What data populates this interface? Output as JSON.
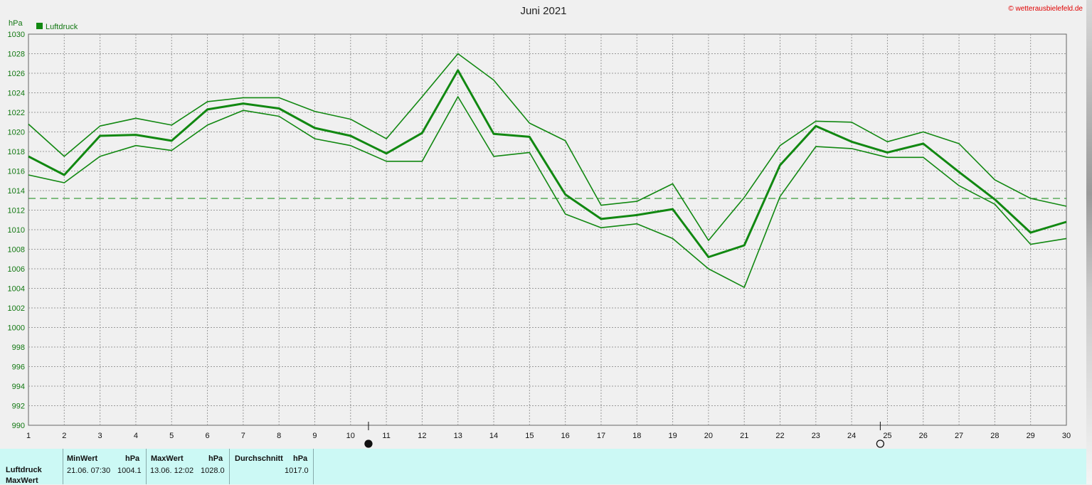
{
  "header": {
    "title": "Juni 2021",
    "copyright": "© wetterausbielefeld.de",
    "unit": "hPa",
    "legend_label": "Luftdruck"
  },
  "colors": {
    "line": "#118811",
    "grid": "#9a9a9a",
    "background": "#f0f0f0"
  },
  "chart_data": {
    "type": "line",
    "title": "Juni 2021",
    "ylabel": "hPa",
    "ylim": [
      990,
      1030
    ],
    "yticks": [
      "1030",
      "1028",
      "1026",
      "1024",
      "1022",
      "1020",
      "1018",
      "1016",
      "1014",
      "1012",
      "1010",
      "1008",
      "1006",
      "1004",
      "1002",
      "1000",
      "998",
      "996",
      "994",
      "992",
      "990"
    ],
    "x": [
      1,
      2,
      3,
      4,
      5,
      6,
      7,
      8,
      9,
      10,
      11,
      12,
      13,
      14,
      15,
      16,
      17,
      18,
      19,
      20,
      21,
      22,
      23,
      24,
      25,
      26,
      27,
      28,
      29,
      30
    ],
    "xticks": [
      "1",
      "2",
      "3",
      "4",
      "5",
      "6",
      "7",
      "8",
      "9",
      "10",
      "11",
      "12",
      "13",
      "14",
      "15",
      "16",
      "17",
      "18",
      "19",
      "20",
      "21",
      "22",
      "23",
      "24",
      "25",
      "26",
      "27",
      "28",
      "29",
      "30"
    ],
    "series": [
      {
        "name": "Luftdruck",
        "role": "max",
        "values": [
          1020.8,
          1017.5,
          1020.6,
          1021.4,
          1020.7,
          1023.1,
          1023.5,
          1023.5,
          1022.1,
          1021.3,
          1019.3,
          1023.6,
          1028.0,
          1025.3,
          1020.9,
          1019.1,
          1012.5,
          1012.9,
          1014.7,
          1008.9,
          1013.3,
          1018.6,
          1021.1,
          1021.0,
          1019.0,
          1020.0,
          1018.8,
          1015.1,
          1013.2,
          1012.4
        ]
      },
      {
        "name": "Luftdruck",
        "role": "mean",
        "values": [
          1017.5,
          1015.6,
          1019.6,
          1019.7,
          1019.1,
          1022.3,
          1022.9,
          1022.4,
          1020.4,
          1019.6,
          1017.8,
          1019.9,
          1026.3,
          1019.8,
          1019.5,
          1013.6,
          1011.1,
          1011.5,
          1012.1,
          1007.2,
          1008.4,
          1016.6,
          1020.6,
          1019.0,
          1017.9,
          1018.8,
          1015.9,
          1013.1,
          1009.7,
          1010.8
        ]
      },
      {
        "name": "Luftdruck",
        "role": "min",
        "values": [
          1015.6,
          1014.8,
          1017.5,
          1018.6,
          1018.1,
          1020.7,
          1022.2,
          1021.6,
          1019.3,
          1018.6,
          1017.0,
          1017.0,
          1023.6,
          1017.5,
          1017.9,
          1011.6,
          1010.2,
          1010.6,
          1009.1,
          1006.0,
          1004.1,
          1013.4,
          1018.5,
          1018.3,
          1017.4,
          1017.4,
          1014.5,
          1012.6,
          1008.5,
          1009.1
        ]
      }
    ],
    "reference_line": 1013.2,
    "moon_phases": [
      {
        "day": 10.5,
        "phase": "new-moon"
      },
      {
        "day": 24.8,
        "phase": "full-moon"
      }
    ],
    "grid": true,
    "legend": "top-left"
  },
  "stats": {
    "row_label": "Luftdruck",
    "row_label_2": "MaxWert",
    "min_header": "MinWert",
    "min_unit": "hPa",
    "min_date": "21.06.  07:30",
    "min_value": "1004.1",
    "max_header": "MaxWert",
    "max_unit": "hPa",
    "max_date": "13.06.  12:02",
    "max_value": "1028.0",
    "avg_header": "Durchschnitt",
    "avg_unit": "hPa",
    "avg_value": "1017.0"
  }
}
